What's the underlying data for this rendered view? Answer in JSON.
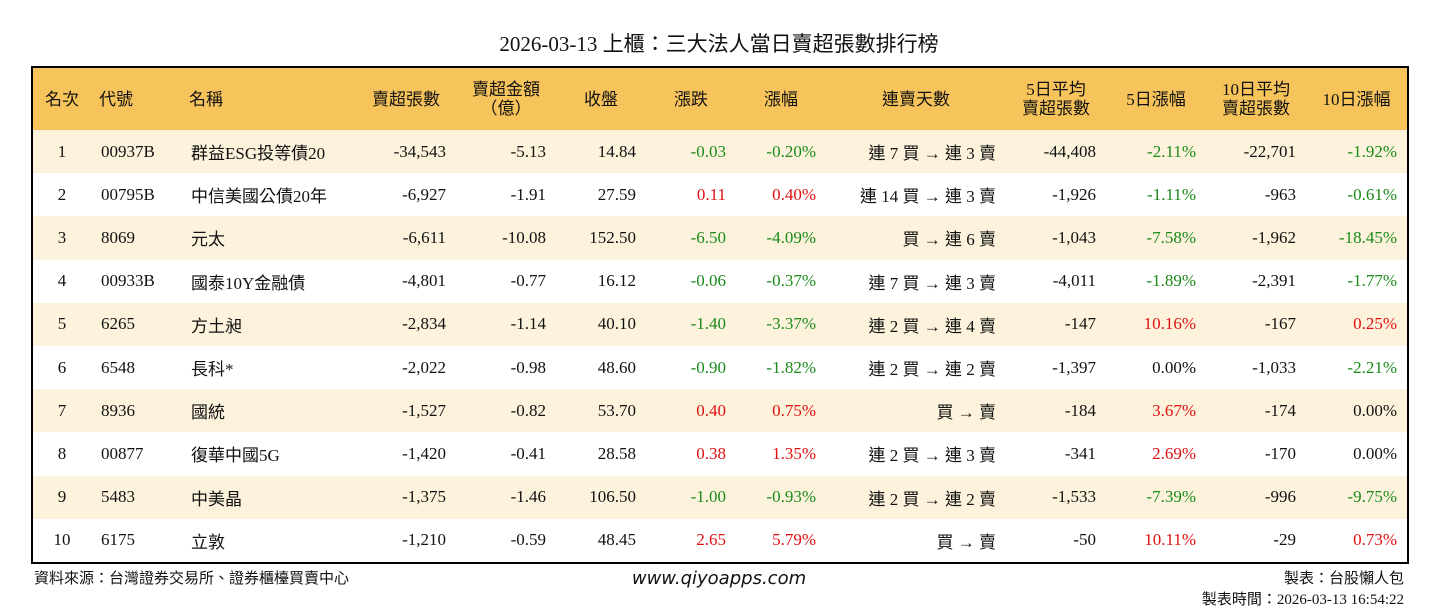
{
  "header": {
    "title": "2026-03-13 上櫃：三大法人當日賣超張數排行榜"
  },
  "table": {
    "columns": [
      "名次",
      "代號",
      "名稱",
      "賣超張數",
      "賣超金額\n（億）",
      "收盤",
      "漲跌",
      "漲幅",
      "連賣天數",
      "5日平均\n賣超張數",
      "5日漲幅",
      "10日平均\n賣超張數",
      "10日漲幅"
    ],
    "rows": [
      [
        "1",
        "00937B",
        "群益ESG投等債20",
        "-34,543",
        "-5.13",
        "14.84",
        "-0.03",
        "-0.20%",
        "連 7 買 → 連 3 賣",
        "-44,408",
        "-2.11%",
        "-22,701",
        "-1.92%"
      ],
      [
        "2",
        "00795B",
        "中信美國公債20年",
        "-6,927",
        "-1.91",
        "27.59",
        "0.11",
        "0.40%",
        "連 14 買 → 連 3 賣",
        "-1,926",
        "-1.11%",
        "-963",
        "-0.61%"
      ],
      [
        "3",
        "8069",
        "元太",
        "-6,611",
        "-10.08",
        "152.50",
        "-6.50",
        "-4.09%",
        "買 → 連 6 賣",
        "-1,043",
        "-7.58%",
        "-1,962",
        "-18.45%"
      ],
      [
        "4",
        "00933B",
        "國泰10Y金融債",
        "-4,801",
        "-0.77",
        "16.12",
        "-0.06",
        "-0.37%",
        "連 7 買 → 連 3 賣",
        "-4,011",
        "-1.89%",
        "-2,391",
        "-1.77%"
      ],
      [
        "5",
        "6265",
        "方土昶",
        "-2,834",
        "-1.14",
        "40.10",
        "-1.40",
        "-3.37%",
        "連 2 買 → 連 4 賣",
        "-147",
        "10.16%",
        "-167",
        "0.25%"
      ],
      [
        "6",
        "6548",
        "長科*",
        "-2,022",
        "-0.98",
        "48.60",
        "-0.90",
        "-1.82%",
        "連 2 買 → 連 2 賣",
        "-1,397",
        "0.00%",
        "-1,033",
        "-2.21%"
      ],
      [
        "7",
        "8936",
        "國統",
        "-1,527",
        "-0.82",
        "53.70",
        "0.40",
        "0.75%",
        "買 → 賣",
        "-184",
        "3.67%",
        "-174",
        "0.00%"
      ],
      [
        "8",
        "00877",
        "復華中國5G",
        "-1,420",
        "-0.41",
        "28.58",
        "0.38",
        "1.35%",
        "連 2 買 → 連 3 賣",
        "-341",
        "2.69%",
        "-170",
        "0.00%"
      ],
      [
        "9",
        "5483",
        "中美晶",
        "-1,375",
        "-1.46",
        "106.50",
        "-1.00",
        "-0.93%",
        "連 2 買 → 連 2 賣",
        "-1,533",
        "-7.39%",
        "-996",
        "-9.75%"
      ],
      [
        "10",
        "6175",
        "立敦",
        "-1,210",
        "-0.59",
        "48.45",
        "2.65",
        "5.79%",
        "買 → 賣",
        "-50",
        "10.11%",
        "-29",
        "0.73%"
      ]
    ]
  },
  "footer": {
    "source": "資料來源：台灣證券交易所、證券櫃檯買賣中心",
    "website": "www.qiyoapps.com",
    "author": "製表：台股懶人包",
    "time": "製表時間：2026-03-13 16:54:22"
  }
}
